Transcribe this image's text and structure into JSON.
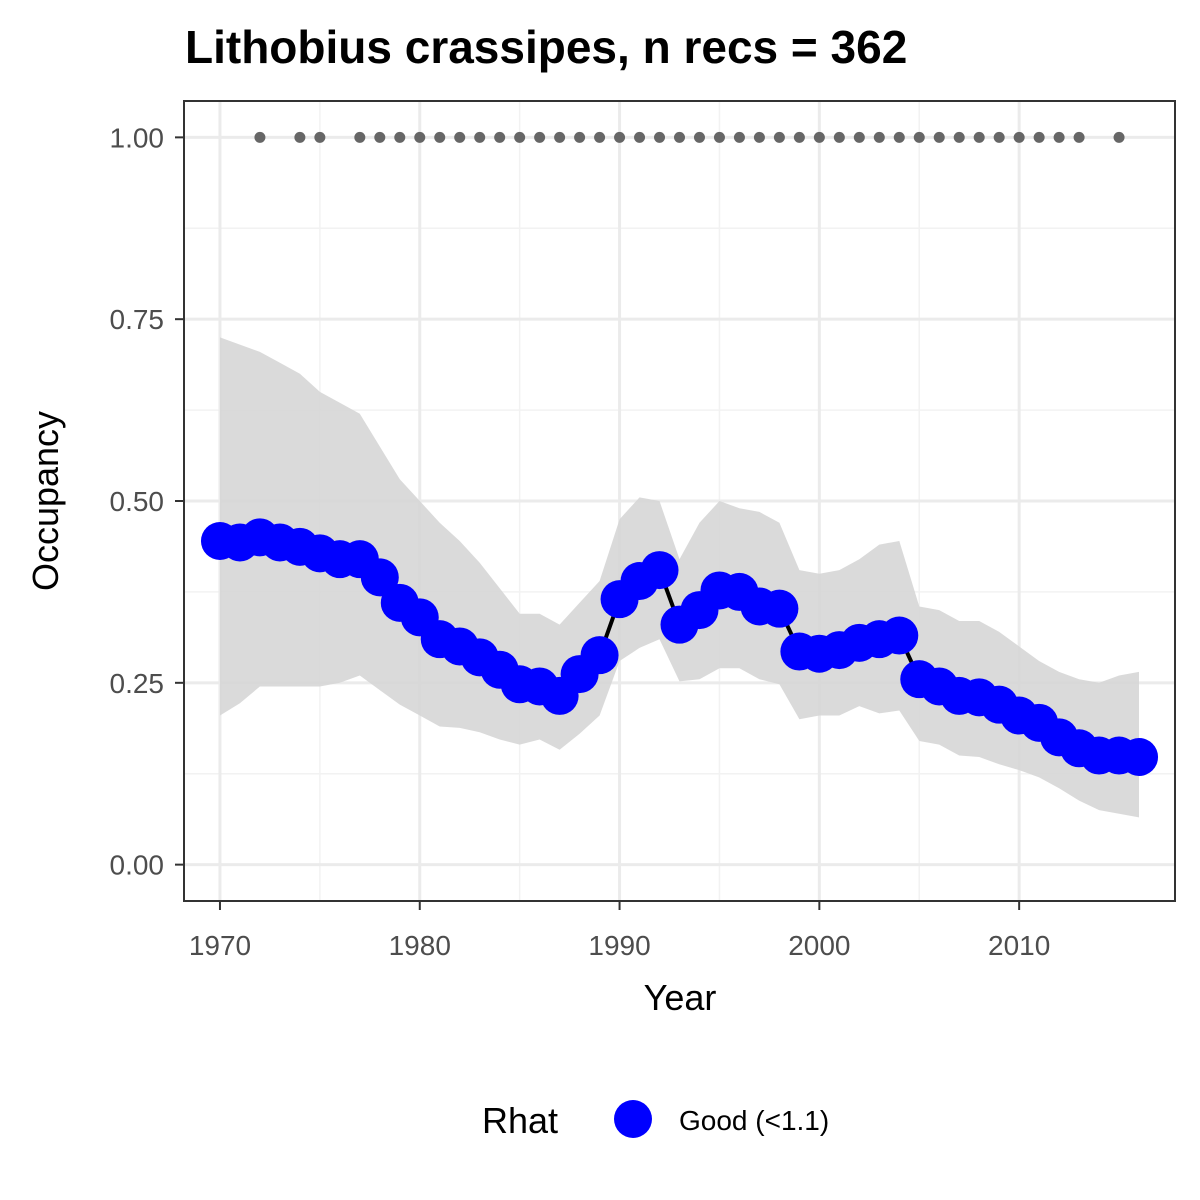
{
  "chart_data": {
    "type": "line",
    "title": "Lithobius crassipes, n recs = 362",
    "xlabel": "Year",
    "ylabel": "Occupancy",
    "xlim": [
      1968.2,
      2017.8
    ],
    "ylim": [
      -0.05,
      1.05
    ],
    "x_ticks": [
      1970,
      1980,
      1990,
      2000,
      2010
    ],
    "x_tick_labels": [
      "1970",
      "1980",
      "1990",
      "2000",
      "2010"
    ],
    "y_ticks": [
      0,
      0.25,
      0.5,
      0.75,
      1.0
    ],
    "y_tick_labels": [
      "0.00",
      "0.25",
      "0.50",
      "0.75",
      "1.00"
    ],
    "grid": true,
    "legend": {
      "position": "bottom",
      "title": "Rhat",
      "entries": [
        {
          "label": "Good (<1.1)",
          "color": "#0000ff"
        }
      ]
    },
    "colors": {
      "point": "#0000ff",
      "line": "#000000",
      "ribbon": "#d6d6d6",
      "record_dots": "#666666"
    },
    "x": [
      1970,
      1971,
      1972,
      1973,
      1974,
      1975,
      1976,
      1977,
      1978,
      1979,
      1980,
      1981,
      1982,
      1983,
      1984,
      1985,
      1986,
      1987,
      1988,
      1989,
      1990,
      1991,
      1992,
      1993,
      1994,
      1995,
      1996,
      1997,
      1998,
      1999,
      2000,
      2001,
      2002,
      2003,
      2004,
      2005,
      2006,
      2007,
      2008,
      2009,
      2010,
      2011,
      2012,
      2013,
      2014,
      2015,
      2016
    ],
    "series": [
      {
        "name": "Good (<1.1)",
        "values": [
          0.445,
          0.443,
          0.45,
          0.443,
          0.437,
          0.428,
          0.42,
          0.42,
          0.395,
          0.36,
          0.34,
          0.31,
          0.3,
          0.285,
          0.268,
          0.248,
          0.245,
          0.232,
          0.262,
          0.288,
          0.365,
          0.39,
          0.405,
          0.33,
          0.35,
          0.377,
          0.375,
          0.355,
          0.352,
          0.293,
          0.29,
          0.295,
          0.305,
          0.31,
          0.315,
          0.255,
          0.245,
          0.232,
          0.23,
          0.22,
          0.205,
          0.195,
          0.175,
          0.16,
          0.15,
          0.15,
          0.148
        ],
        "lower": [
          0.205,
          0.222,
          0.245,
          0.245,
          0.245,
          0.245,
          0.25,
          0.26,
          0.24,
          0.22,
          0.205,
          0.19,
          0.188,
          0.182,
          0.172,
          0.165,
          0.172,
          0.158,
          0.18,
          0.205,
          0.28,
          0.298,
          0.31,
          0.252,
          0.255,
          0.27,
          0.27,
          0.255,
          0.248,
          0.2,
          0.205,
          0.205,
          0.218,
          0.208,
          0.212,
          0.17,
          0.165,
          0.15,
          0.148,
          0.138,
          0.13,
          0.12,
          0.105,
          0.088,
          0.075,
          0.07,
          0.065
        ],
        "upper": [
          0.725,
          0.715,
          0.705,
          0.69,
          0.675,
          0.65,
          0.635,
          0.62,
          0.575,
          0.53,
          0.5,
          0.47,
          0.445,
          0.415,
          0.38,
          0.345,
          0.345,
          0.33,
          0.36,
          0.39,
          0.475,
          0.505,
          0.5,
          0.42,
          0.47,
          0.5,
          0.49,
          0.485,
          0.47,
          0.405,
          0.4,
          0.405,
          0.42,
          0.44,
          0.445,
          0.355,
          0.35,
          0.335,
          0.335,
          0.32,
          0.3,
          0.28,
          0.265,
          0.255,
          0.25,
          0.26,
          0.265
        ]
      }
    ],
    "record_years": [
      1972,
      1974,
      1975,
      1977,
      1978,
      1979,
      1980,
      1981,
      1982,
      1983,
      1984,
      1985,
      1986,
      1987,
      1988,
      1989,
      1990,
      1991,
      1992,
      1993,
      1994,
      1995,
      1996,
      1997,
      1998,
      1999,
      2000,
      2001,
      2002,
      2003,
      2004,
      2005,
      2006,
      2007,
      2008,
      2009,
      2010,
      2011,
      2012,
      2013,
      2015
    ],
    "record_y": 1.0
  }
}
